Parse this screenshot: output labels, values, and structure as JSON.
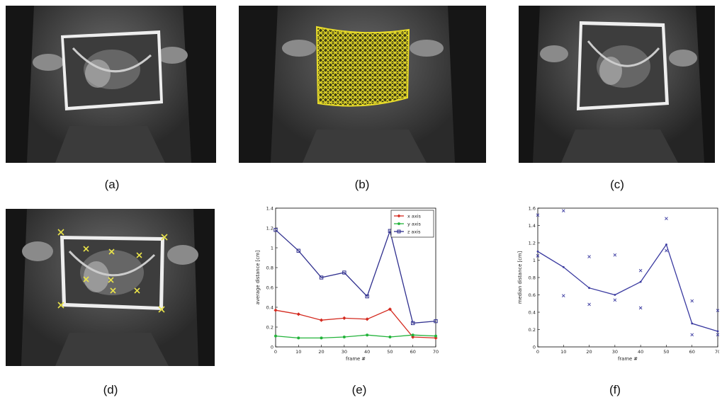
{
  "figure": {
    "captions": [
      "(a)",
      "(b)",
      "(c)",
      "(d)",
      "(e)",
      "(f)"
    ]
  },
  "colors": {
    "mesh": "#e8dc2a",
    "marker": "#e8e24a",
    "red_series": "#d42a1f",
    "green_series": "#22b33a",
    "blue_series": "#2f2f8e",
    "f_series": "#3a3aa0"
  },
  "chart_data": [
    {
      "type": "line",
      "panel": "(e)",
      "title": "",
      "xlabel": "frame #",
      "ylabel": "average distance [cm]",
      "xlim": [
        0,
        70
      ],
      "ylim": [
        0,
        1.4
      ],
      "xticks": [
        0,
        10,
        20,
        30,
        40,
        50,
        60,
        70
      ],
      "yticks": [
        0,
        0.2,
        0.4,
        0.6,
        0.8,
        1,
        1.2,
        1.4
      ],
      "ytick_labels": [
        "0",
        "0.2",
        "0.4",
        "0.6",
        "0.8",
        "1",
        "1.2",
        "1.4"
      ],
      "legend_position": "top-right",
      "x": [
        0,
        10,
        20,
        30,
        40,
        50,
        60,
        70
      ],
      "series": [
        {
          "name": "x axis",
          "color": "#d42a1f",
          "marker": "diamond",
          "values": [
            0.37,
            0.33,
            0.27,
            0.29,
            0.28,
            0.38,
            0.1,
            0.09
          ]
        },
        {
          "name": "y axis",
          "color": "#22b33a",
          "marker": "circle",
          "values": [
            0.11,
            0.09,
            0.09,
            0.1,
            0.12,
            0.1,
            0.12,
            0.11
          ]
        },
        {
          "name": "z axis",
          "color": "#2f2f8e",
          "marker": "square",
          "values": [
            1.18,
            0.97,
            0.7,
            0.75,
            0.51,
            1.17,
            0.24,
            0.26
          ]
        }
      ]
    },
    {
      "type": "line",
      "panel": "(f)",
      "title": "",
      "xlabel": "frame #",
      "ylabel": "median distance [cm]",
      "xlim": [
        0,
        70
      ],
      "ylim": [
        0,
        1.6
      ],
      "xticks": [
        0,
        10,
        20,
        30,
        40,
        50,
        60,
        70
      ],
      "yticks": [
        0,
        0.2,
        0.4,
        0.6,
        0.8,
        1,
        1.2,
        1.4,
        1.6
      ],
      "ytick_labels": [
        "0",
        "0.2",
        "0.4",
        "0.6",
        "0.8",
        "1",
        "1.2",
        "1.4",
        "1.6"
      ],
      "x": [
        0,
        10,
        20,
        30,
        40,
        50,
        60,
        70
      ],
      "series": [
        {
          "color": "#3a3aa0",
          "marker": "point",
          "values": [
            1.1,
            0.92,
            0.68,
            0.6,
            0.75,
            1.18,
            0.27,
            0.18
          ]
        }
      ],
      "error_markers": [
        {
          "x": 0,
          "values": [
            1.52,
            1.05
          ]
        },
        {
          "x": 10,
          "values": [
            1.57,
            0.59
          ]
        },
        {
          "x": 20,
          "values": [
            1.04,
            0.49
          ]
        },
        {
          "x": 30,
          "values": [
            1.06,
            0.54
          ]
        },
        {
          "x": 40,
          "values": [
            0.88,
            0.45
          ]
        },
        {
          "x": 50,
          "values": [
            1.48,
            1.11
          ]
        },
        {
          "x": 60,
          "values": [
            0.53,
            0.14
          ]
        },
        {
          "x": 70,
          "values": [
            0.42,
            0.14
          ]
        }
      ]
    }
  ]
}
